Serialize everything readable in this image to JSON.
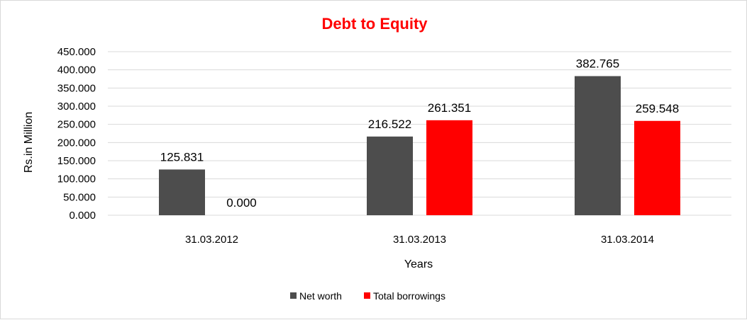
{
  "chart_data": {
    "type": "bar",
    "title": "Debt to Equity",
    "title_color": "#ff0000",
    "xlabel": "Years",
    "ylabel": "Rs.in Million",
    "categories": [
      "31.03.2012",
      "31.03.2013",
      "31.03.2014"
    ],
    "series": [
      {
        "name": "Net worth",
        "color": "#4d4d4d",
        "values": [
          125.831,
          216.522,
          382.765
        ]
      },
      {
        "name": "Total borrowings",
        "color": "#ff0000",
        "values": [
          0.0,
          261.351,
          259.548
        ]
      }
    ],
    "ylim": [
      0,
      450
    ],
    "yticks": [
      "0.000",
      "50.000",
      "100.000",
      "150.000",
      "200.000",
      "250.000",
      "300.000",
      "350.000",
      "400.000",
      "450.000"
    ],
    "data_labels": [
      [
        "125.831",
        "216.522",
        "382.765"
      ],
      [
        "0.000",
        "261.351",
        "259.548"
      ]
    ],
    "grid": true,
    "legend_position": "bottom"
  }
}
